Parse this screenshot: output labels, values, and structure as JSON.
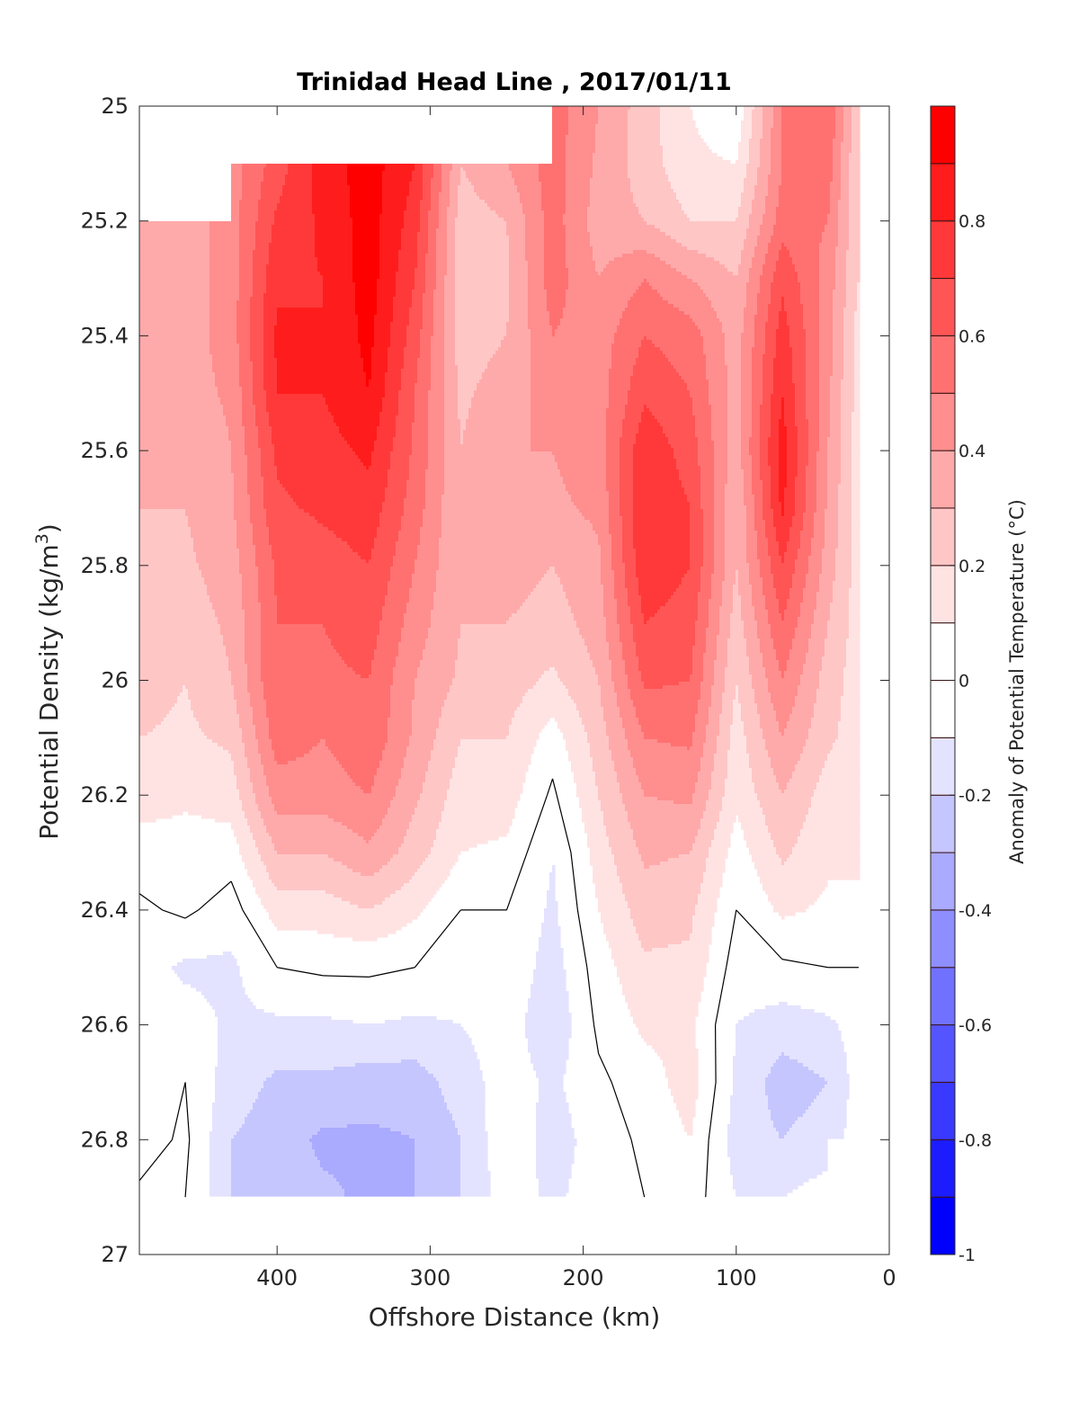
{
  "chart_data": {
    "type": "contourf",
    "title": "Trinidad Head Line , 2017/01/11",
    "xlabel": "Offshore Distance (km)",
    "ylabel": {
      "prefix": "Potential Density (kg/m",
      "sup": "3",
      "suffix": ")"
    },
    "colorbar_label": "Anomaly of Potential Temperature (°C)",
    "xlim": [
      0,
      490
    ],
    "x_reversed": true,
    "ylim": [
      25,
      27
    ],
    "y_reversed": true,
    "xticks": [
      400,
      300,
      200,
      100,
      0
    ],
    "xtick_labels": [
      "400",
      "300",
      "200",
      "100",
      "0"
    ],
    "yticks": [
      25,
      25.2,
      25.4,
      25.6,
      25.8,
      26,
      26.2,
      26.4,
      26.6,
      26.8,
      27
    ],
    "ytick_labels": [
      "25",
      "25.2",
      "25.4",
      "25.6",
      "25.8",
      "26",
      "26.2",
      "26.4",
      "26.6",
      "26.8",
      "27"
    ],
    "clim": [
      -1,
      1
    ],
    "contour_step": 0.1,
    "colorbar_ticks": [
      -1,
      -0.8,
      -0.6,
      -0.4,
      -0.2,
      0,
      0.2,
      0.4,
      0.6,
      0.8
    ],
    "colorbar_tick_labels": [
      "-1",
      "-0.8",
      "-0.6",
      "-0.4",
      "-0.2",
      "0",
      "0.2",
      "0.4",
      "0.6",
      "0.8"
    ],
    "zero_contour_color": "#000000",
    "positive_color": "#ff0000",
    "negative_color": "#0000ff",
    "x": [
      490,
      460,
      430,
      400,
      370,
      340,
      310,
      280,
      250,
      220,
      190,
      160,
      130,
      100,
      70,
      40,
      20
    ],
    "y": [
      25.0,
      25.1,
      25.2,
      25.3,
      25.4,
      25.5,
      25.6,
      25.7,
      25.8,
      25.9,
      26.0,
      26.1,
      26.2,
      26.3,
      26.4,
      26.5,
      26.6,
      26.7,
      26.8,
      26.9
    ],
    "values": [
      [
        null,
        null,
        null,
        null,
        null,
        null,
        null,
        null,
        null,
        0.55,
        0.4,
        0.25,
        0.1,
        0.02,
        0.5,
        0.6,
        0.2
      ],
      [
        null,
        null,
        0.45,
        0.65,
        0.85,
        0.95,
        0.8,
        0.3,
        0.4,
        0.55,
        0.38,
        0.25,
        0.12,
        0.1,
        0.5,
        0.55,
        0.2
      ],
      [
        0.35,
        0.35,
        0.45,
        0.72,
        0.82,
        0.95,
        0.75,
        0.25,
        0.3,
        0.55,
        0.35,
        0.3,
        0.2,
        0.2,
        0.55,
        0.5,
        0.2
      ],
      [
        0.35,
        0.35,
        0.45,
        0.78,
        0.8,
        0.95,
        0.7,
        0.25,
        0.28,
        0.55,
        0.4,
        0.5,
        0.4,
        0.3,
        0.68,
        0.45,
        0.2
      ],
      [
        0.35,
        0.35,
        0.45,
        0.82,
        0.8,
        0.93,
        0.65,
        0.25,
        0.3,
        0.5,
        0.45,
        0.6,
        0.55,
        0.35,
        0.75,
        0.45,
        0.15
      ],
      [
        0.35,
        0.35,
        0.42,
        0.8,
        0.8,
        0.9,
        0.6,
        0.28,
        0.35,
        0.45,
        0.45,
        0.68,
        0.6,
        0.35,
        0.8,
        0.42,
        0.15
      ],
      [
        0.3,
        0.3,
        0.4,
        0.72,
        0.76,
        0.82,
        0.58,
        0.3,
        0.4,
        0.4,
        0.45,
        0.78,
        0.65,
        0.35,
        0.85,
        0.4,
        0.15
      ],
      [
        0.3,
        0.3,
        0.38,
        0.68,
        0.72,
        0.76,
        0.55,
        0.3,
        0.4,
        0.38,
        0.42,
        0.8,
        0.7,
        0.3,
        0.82,
        0.38,
        0.15
      ],
      [
        0.25,
        0.28,
        0.35,
        0.62,
        0.65,
        0.7,
        0.5,
        0.3,
        0.35,
        0.3,
        0.38,
        0.78,
        0.7,
        0.3,
        0.7,
        0.35,
        0.15
      ],
      [
        0.25,
        0.25,
        0.32,
        0.6,
        0.6,
        0.65,
        0.45,
        0.3,
        0.3,
        0.25,
        0.35,
        0.7,
        0.65,
        0.25,
        0.6,
        0.3,
        0.15
      ],
      [
        0.25,
        0.2,
        0.3,
        0.6,
        0.58,
        0.6,
        0.4,
        0.28,
        0.25,
        0.18,
        0.3,
        0.62,
        0.6,
        0.2,
        0.5,
        0.25,
        0.15
      ],
      [
        0.2,
        0.18,
        0.22,
        0.55,
        0.5,
        0.58,
        0.38,
        0.2,
        0.2,
        0.05,
        0.25,
        0.5,
        0.52,
        0.15,
        0.4,
        0.22,
        0.15
      ],
      [
        0.15,
        0.12,
        0.15,
        0.45,
        0.45,
        0.5,
        0.32,
        0.15,
        0.15,
        -0.02,
        0.2,
        0.4,
        0.42,
        0.12,
        0.3,
        0.15,
        0.12
      ],
      [
        0.05,
        0.05,
        0.05,
        0.3,
        0.3,
        0.38,
        0.25,
        0.1,
        0.08,
        -0.1,
        0.15,
        0.32,
        0.3,
        0.05,
        0.22,
        0.12,
        0.1
      ],
      [
        -0.02,
        0.02,
        -0.05,
        0.15,
        0.15,
        0.2,
        0.12,
        0.0,
        0.0,
        -0.12,
        0.1,
        0.25,
        0.22,
        0.0,
        0.12,
        0.08,
        0.1
      ],
      [
        -0.05,
        -0.12,
        -0.12,
        0.0,
        0.02,
        0.02,
        0.0,
        -0.05,
        -0.02,
        -0.15,
        0.05,
        0.18,
        0.18,
        -0.05,
        -0.02,
        0.0,
        0.0
      ],
      [
        -0.1,
        -0.05,
        -0.12,
        -0.12,
        -0.12,
        -0.1,
        -0.12,
        -0.1,
        -0.05,
        -0.18,
        0.02,
        0.12,
        0.12,
        -0.1,
        -0.15,
        -0.12,
        -0.05
      ],
      [
        -0.05,
        0.0,
        -0.15,
        -0.22,
        -0.22,
        -0.25,
        -0.25,
        -0.15,
        -0.05,
        -0.12,
        -0.02,
        0.05,
        0.15,
        -0.12,
        -0.25,
        -0.2,
        -0.05
      ],
      [
        -0.05,
        0.02,
        -0.2,
        -0.25,
        -0.32,
        -0.32,
        -0.3,
        -0.2,
        -0.02,
        -0.15,
        -0.05,
        0.02,
        0.1,
        -0.15,
        -0.2,
        -0.15,
        -0.05
      ],
      [
        0.02,
        0.0,
        -0.2,
        -0.25,
        -0.28,
        -0.32,
        -0.3,
        -0.2,
        -0.05,
        -0.12,
        -0.05,
        0.0,
        0.05,
        -0.1,
        -0.1,
        -0.05,
        null
      ]
    ]
  }
}
